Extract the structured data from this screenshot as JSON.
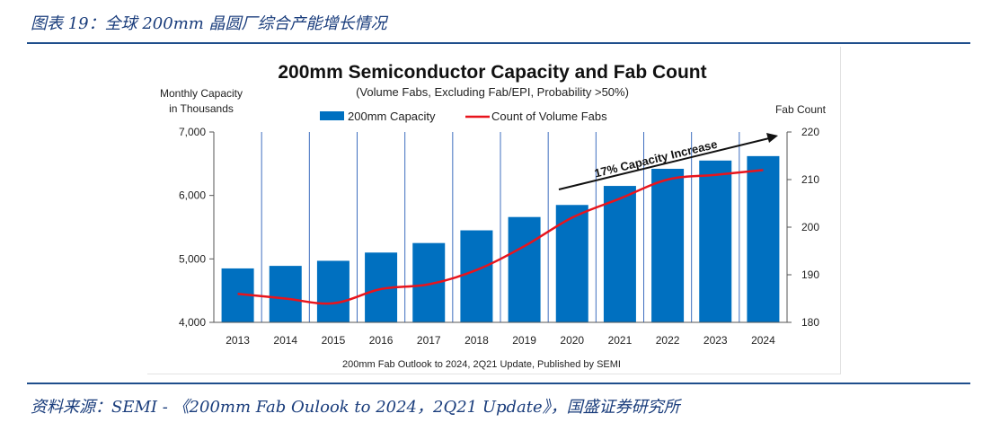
{
  "caption": "图表 19：全球 200mm 晶圆厂综合产能增长情况",
  "source": "资料来源：SEMI - 《200mm Fab Oulook to 2024，2Q21 Update》，国盛证券研究所",
  "colors": {
    "bar": "#0070c0",
    "line": "#e8141c",
    "arrow": "#111111",
    "rule": "#1f4e8c",
    "grid": "#3f6fbf"
  },
  "chart_data": {
    "type": "bar",
    "title": "200mm Semiconductor Capacity and Fab Count",
    "subtitle": "(Volume Fabs, Excluding Fab/EPI, Probability >50%)",
    "ylabel_line1": "Monthly Capacity",
    "ylabel_line2": "in Thousands",
    "y2label": "Fab Count",
    "footnote": "200mm Fab Outlook to 2024, 2Q21 Update, Published by SEMI",
    "annotation": "17% Capacity Increase",
    "categories": [
      "2013",
      "2014",
      "2015",
      "2016",
      "2017",
      "2018",
      "2019",
      "2020",
      "2021",
      "2022",
      "2023",
      "2024"
    ],
    "ylim": [
      4000,
      7000
    ],
    "yticks": [
      4000,
      5000,
      6000,
      7000
    ],
    "ytick_labels": [
      "4,000",
      "5,000",
      "6,000",
      "7,000"
    ],
    "y2lim": [
      180,
      220
    ],
    "y2ticks": [
      180,
      190,
      200,
      210,
      220
    ],
    "series": [
      {
        "name": "200mm Capacity",
        "type": "bar",
        "axis": "left",
        "values": [
          4850,
          4890,
          4970,
          5100,
          5250,
          5450,
          5660,
          5850,
          6150,
          6420,
          6550,
          6620
        ]
      },
      {
        "name": "Count of Volume Fabs",
        "type": "line",
        "axis": "right",
        "values": [
          186,
          185,
          184,
          187,
          188,
          191,
          196,
          202,
          206,
          210,
          211,
          212
        ]
      }
    ]
  }
}
